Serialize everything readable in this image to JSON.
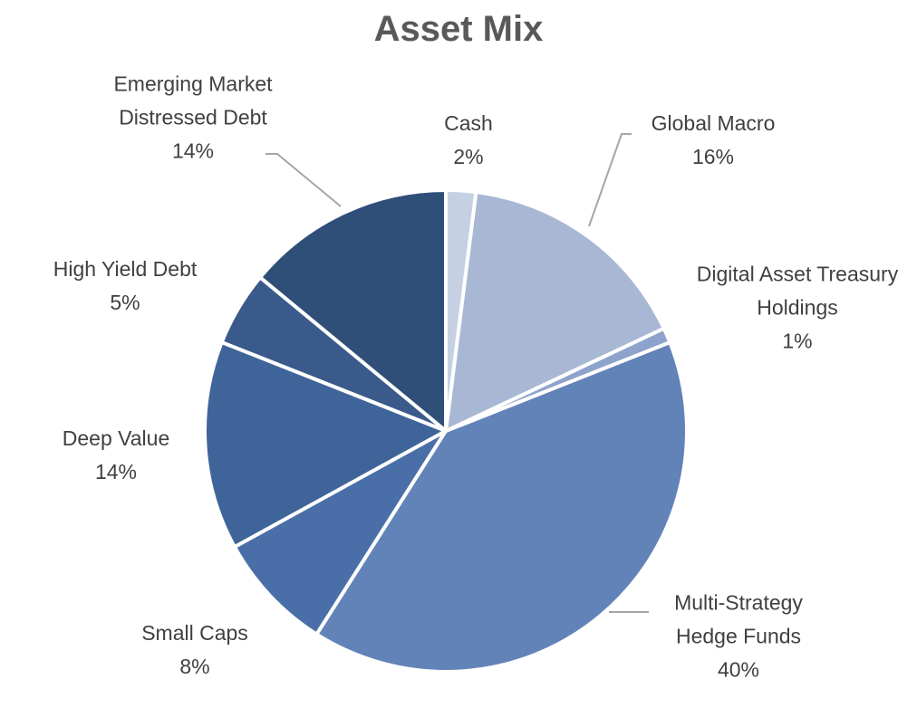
{
  "chart_data": {
    "type": "pie",
    "title": "Asset Mix",
    "categories": [
      "Cash",
      "Global Macro",
      "Digital Asset Treasury Holdings",
      "Multi-Strategy Hedge Funds",
      "Small Caps",
      "Deep Value",
      "High Yield Debt",
      "Emerging Market Distressed Debt"
    ],
    "values": [
      2,
      16,
      1,
      40,
      8,
      14,
      5,
      14
    ],
    "value_labels": [
      "2%",
      "16%",
      "1%",
      "40%",
      "8%",
      "14%",
      "5%",
      "14%"
    ],
    "colors": [
      "#c5d0e3",
      "#a8b7d4",
      "#8ea3cc",
      "#6283b8",
      "#4a6fa8",
      "#3f6499",
      "#395a8a",
      "#2f4f78"
    ]
  }
}
